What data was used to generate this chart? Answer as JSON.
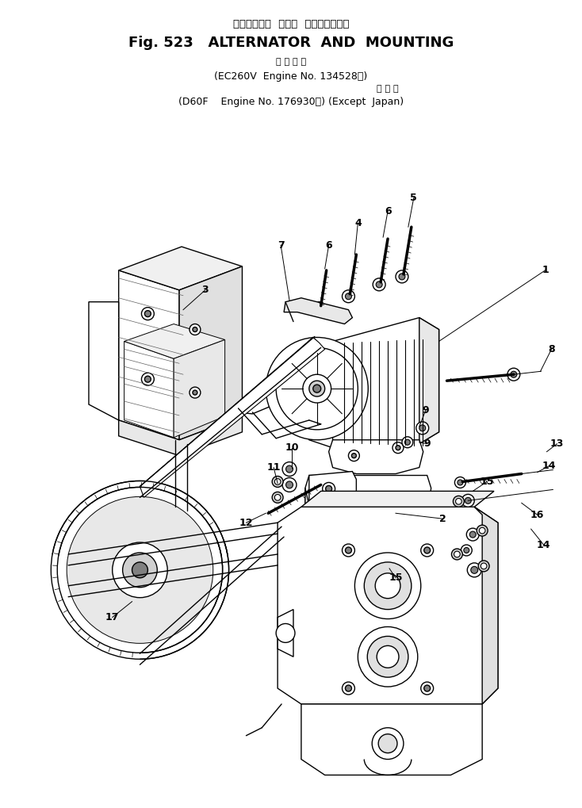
{
  "title_japanese": "オルタネータ  および  マウンティング",
  "title_english": "Fig. 523   ALTERNATOR  AND  MOUNTING",
  "subtitle_kanji": "適 用 号 機",
  "subtitle_line1": "(EC260V  Engine No. 134528～)",
  "subtitle_kanji2": "海 外 向",
  "subtitle_line2": "(D60F    Engine No. 176930～) (Except  Japan)",
  "bg_color": "#ffffff",
  "line_color": "#000000",
  "figsize": [
    7.34,
    10.19
  ],
  "dpi": 100
}
